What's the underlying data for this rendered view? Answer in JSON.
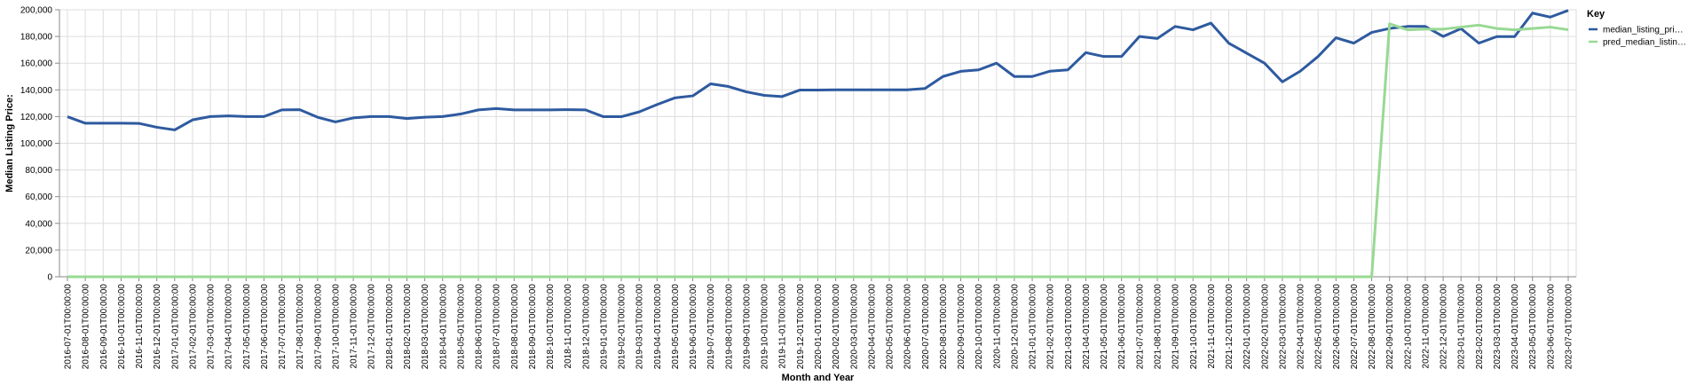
{
  "chart_data": {
    "type": "line",
    "xlabel": "Month and Year",
    "ylabel": "Median Listing Price:",
    "ylim": [
      0,
      200000
    ],
    "yticks": [
      "0",
      "20,000",
      "40,000",
      "60,000",
      "80,000",
      "100,000",
      "120,000",
      "140,000",
      "160,000",
      "180,000",
      "200,000"
    ],
    "grid": true,
    "legend": {
      "title": "Key",
      "position": "top-right",
      "entries": [
        "median_listing_pri…",
        "pred_median_listin…"
      ]
    },
    "categories": [
      "2016-07-01T00:00:00",
      "2016-08-01T00:00:00",
      "2016-09-01T00:00:00",
      "2016-10-01T00:00:00",
      "2016-11-01T00:00:00",
      "2016-12-01T00:00:00",
      "2017-01-01T00:00:00",
      "2017-02-01T00:00:00",
      "2017-03-01T00:00:00",
      "2017-04-01T00:00:00",
      "2017-05-01T00:00:00",
      "2017-06-01T00:00:00",
      "2017-07-01T00:00:00",
      "2017-08-01T00:00:00",
      "2017-09-01T00:00:00",
      "2017-10-01T00:00:00",
      "2017-11-01T00:00:00",
      "2017-12-01T00:00:00",
      "2018-01-01T00:00:00",
      "2018-02-01T00:00:00",
      "2018-03-01T00:00:00",
      "2018-04-01T00:00:00",
      "2018-05-01T00:00:00",
      "2018-06-01T00:00:00",
      "2018-07-01T00:00:00",
      "2018-08-01T00:00:00",
      "2018-09-01T00:00:00",
      "2018-10-01T00:00:00",
      "2018-11-01T00:00:00",
      "2018-12-01T00:00:00",
      "2019-01-01T00:00:00",
      "2019-02-01T00:00:00",
      "2019-03-01T00:00:00",
      "2019-04-01T00:00:00",
      "2019-05-01T00:00:00",
      "2019-06-01T00:00:00",
      "2019-07-01T00:00:00",
      "2019-08-01T00:00:00",
      "2019-09-01T00:00:00",
      "2019-10-01T00:00:00",
      "2019-11-01T00:00:00",
      "2019-12-01T00:00:00",
      "2020-01-01T00:00:00",
      "2020-02-01T00:00:00",
      "2020-03-01T00:00:00",
      "2020-04-01T00:00:00",
      "2020-05-01T00:00:00",
      "2020-06-01T00:00:00",
      "2020-07-01T00:00:00",
      "2020-08-01T00:00:00",
      "2020-09-01T00:00:00",
      "2020-10-01T00:00:00",
      "2020-11-01T00:00:00",
      "2020-12-01T00:00:00",
      "2021-01-01T00:00:00",
      "2021-02-01T00:00:00",
      "2021-03-01T00:00:00",
      "2021-04-01T00:00:00",
      "2021-05-01T00:00:00",
      "2021-06-01T00:00:00",
      "2021-07-01T00:00:00",
      "2021-08-01T00:00:00",
      "2021-09-01T00:00:00",
      "2021-10-01T00:00:00",
      "2021-11-01T00:00:00",
      "2021-12-01T00:00:00",
      "2022-01-01T00:00:00",
      "2022-02-01T00:00:00",
      "2022-03-01T00:00:00",
      "2022-04-01T00:00:00",
      "2022-05-01T00:00:00",
      "2022-06-01T00:00:00",
      "2022-07-01T00:00:00",
      "2022-08-01T00:00:00",
      "2022-09-01T00:00:00",
      "2022-10-01T00:00:00",
      "2022-11-01T00:00:00",
      "2022-12-01T00:00:00",
      "2023-01-01T00:00:00",
      "2023-02-01T00:00:00",
      "2023-03-01T00:00:00",
      "2023-04-01T00:00:00",
      "2023-05-01T00:00:00",
      "2023-06-01T00:00:00",
      "2023-07-01T00:00:00"
    ],
    "series": [
      {
        "name": "median_listing_pri…",
        "color": "#2e5a9f",
        "values": [
          119900,
          115000,
          115000,
          115000,
          114900,
          112000,
          110000,
          117500,
          120000,
          120500,
          120000,
          120000,
          125000,
          125200,
          119500,
          116000,
          119000,
          120000,
          120000,
          118500,
          119500,
          120000,
          121900,
          125000,
          126000,
          125000,
          125000,
          125000,
          125200,
          125000,
          119900,
          119900,
          123500,
          129000,
          134000,
          135500,
          144500,
          142500,
          138500,
          135900,
          135000,
          139900,
          139900,
          140000,
          140000,
          140000,
          140000,
          140000,
          141000,
          150000,
          153900,
          155000,
          160000,
          150000,
          150000,
          154000,
          155000,
          167900,
          165000,
          165000,
          180000,
          178500,
          187500,
          185000,
          190000,
          175000,
          167500,
          160000,
          146000,
          154000,
          165000,
          179000,
          175000,
          183000,
          186000,
          187500,
          187500,
          180000,
          185900,
          175000,
          179900,
          179900,
          197500,
          194500,
          199500
        ]
      },
      {
        "name": "pred_median_listin…",
        "color": "#98d993",
        "values": [
          0,
          0,
          0,
          0,
          0,
          0,
          0,
          0,
          0,
          0,
          0,
          0,
          0,
          0,
          0,
          0,
          0,
          0,
          0,
          0,
          0,
          0,
          0,
          0,
          0,
          0,
          0,
          0,
          0,
          0,
          0,
          0,
          0,
          0,
          0,
          0,
          0,
          0,
          0,
          0,
          0,
          0,
          0,
          0,
          0,
          0,
          0,
          0,
          0,
          0,
          0,
          0,
          0,
          0,
          0,
          0,
          0,
          0,
          0,
          0,
          0,
          0,
          0,
          0,
          0,
          0,
          0,
          0,
          0,
          0,
          0,
          0,
          0,
          0,
          189500,
          185000,
          185500,
          185500,
          187000,
          188500,
          186000,
          185000,
          186000,
          187000,
          185000
        ]
      }
    ]
  }
}
